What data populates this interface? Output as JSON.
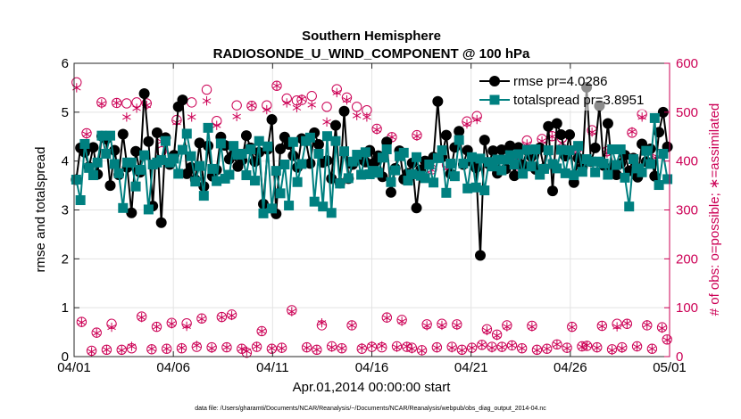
{
  "colors": {
    "rmse": "#000000",
    "spread": "#008080",
    "obs": "#cc0055",
    "grid": "#e3e3e3",
    "axis": "#262626"
  },
  "chart_data": {
    "type": "line",
    "title": "Southern Hemisphere",
    "subtitle": "RADIOSONDE_U_WIND_COMPONENT @ 100 hPa",
    "xlabel": "Apr.01,2014 00:00:00 start",
    "ylabel_left": "rmse and totalspread",
    "ylabel_right": "# of obs: o=possible; ∗=assimilated",
    "xlim": [
      0,
      30
    ],
    "ylim_left": [
      0,
      6
    ],
    "ylim_right": [
      0,
      600
    ],
    "x_ticks": [
      0,
      5,
      10,
      15,
      20,
      25,
      30
    ],
    "x_tick_labels": [
      "04/01",
      "04/06",
      "04/11",
      "04/16",
      "04/21",
      "04/26",
      "05/01"
    ],
    "y_left_ticks": [
      "0",
      "1",
      "2",
      "3",
      "4",
      "5",
      "6"
    ],
    "y_right_ticks": [
      "0",
      "100",
      "200",
      "300",
      "400",
      "500",
      "600"
    ],
    "legend": [
      {
        "label": "rmse pr=4.0286",
        "series": "rmse"
      },
      {
        "label": "totalspread pr=3.8951",
        "series": "totalspread"
      }
    ],
    "legend_position": "top-right",
    "grid": true,
    "series": [
      {
        "name": "rmse",
        "axis": "left",
        "values": [
          3.62,
          4.27,
          4.18,
          3.88,
          4.28,
          3.73,
          4.51,
          4.45,
          3.5,
          4.22,
          3.72,
          4.55,
          3.87,
          2.94,
          4.2,
          3.77,
          5.38,
          4.4,
          3.08,
          4.58,
          2.74,
          4.48,
          3.93,
          4.12,
          5.11,
          5.25,
          3.74,
          3.87,
          3.62,
          4.37,
          3.48,
          4.31,
          3.69,
          3.82,
          4.49,
          4.32,
          4.04,
          4.13,
          3.89,
          4.02,
          4.52,
          4.27,
          3.99,
          4.18,
          3.12,
          4.24,
          4.85,
          2.92,
          4.25,
          4.49,
          4.34,
          4.11,
          3.87,
          4.46,
          4.41,
          3.95,
          4.58,
          4.34,
          3.97,
          4.01,
          3.64,
          4.73,
          3.55,
          5.02,
          3.64,
          3.93,
          4.02,
          4.04,
          3.98,
          4.22,
          3.96,
          4.11,
          3.68,
          4.39,
          3.36,
          3.85,
          4.21,
          3.63,
          3.75,
          3.96,
          3.04,
          3.82,
          4.0,
          3.99,
          4.08,
          5.22,
          4.08,
          4.53,
          3.74,
          4.28,
          4.61,
          3.93,
          4.22,
          3.99,
          3.86,
          2.07,
          4.43,
          3.94,
          4.21,
          3.75,
          4.23,
          3.84,
          4.31,
          3.7,
          4.28,
          3.92,
          4.22,
          4.09,
          3.83,
          4.27,
          3.85,
          4.71,
          3.39,
          4.77,
          4.54,
          4.1,
          4.54,
          3.56,
          4.06,
          3.87,
          5.51,
          3.99,
          4.27,
          5.13,
          3.91,
          4.77,
          3.86,
          3.72,
          3.95,
          4.12,
          3.8,
          4.06,
          3.67,
          4.35,
          3.99,
          4.25,
          3.69,
          4.59,
          5.0,
          4.29
        ]
      },
      {
        "name": "totalspread",
        "axis": "left",
        "values": [
          3.62,
          3.2,
          4.35,
          3.86,
          3.71,
          3.97,
          4.52,
          4.15,
          4.52,
          3.94,
          3.75,
          3.04,
          3.97,
          3.97,
          3.48,
          3.82,
          4.12,
          3.01,
          3.93,
          3.97,
          4.02,
          4.41,
          3.97,
          4.05,
          3.74,
          4.23,
          4.56,
          4.1,
          3.58,
          3.9,
          3.29,
          4.68,
          3.84,
          3.59,
          4.36,
          3.64,
          3.72,
          4.31,
          4.13,
          4.15,
          3.71,
          4.24,
          3.6,
          4.41,
          2.93,
          4.3,
          3.03,
          3.8,
          3.34,
          3.93,
          3.09,
          4.39,
          3.57,
          3.94,
          4.41,
          4.48,
          3.17,
          4.15,
          3.07,
          4.51,
          2.94,
          4.41,
          3.54,
          4.2,
          3.65,
          3.99,
          4.13,
          3.72,
          4.18,
          3.73,
          3.8,
          3.76,
          4.07,
          4.24,
          3.57,
          3.81,
          4.1,
          4.17,
          3.6,
          3.73,
          4.08,
          3.7,
          3.65,
          3.93,
          3.56,
          4.06,
          4.22,
          3.35,
          3.95,
          3.69,
          4.43,
          3.95,
          3.44,
          4.08,
          3.46,
          4.05,
          3.4,
          3.98,
          3.89,
          4.03,
          3.81,
          4.03,
          4.12,
          3.93,
          4.14,
          3.74,
          4.23,
          3.89,
          4.24,
          3.72,
          3.84,
          4.22,
          3.94,
          3.85,
          4.23,
          3.75,
          4.22,
          3.71,
          4.31,
          3.78,
          4.04,
          3.99,
          3.77,
          3.99,
          3.95,
          3.72,
          4.24,
          3.92,
          4.24,
          3.66,
          3.07,
          4.04,
          3.85,
          3.77,
          4.21,
          3.94,
          4.88,
          3.51,
          4.15,
          3.63
        ]
      },
      {
        "name": "obs_possible",
        "axis": "right",
        "values": [
          561,
          71,
          457,
          12,
          49,
          520,
          14,
          67,
          519,
          14,
          518,
          17,
          520,
          82,
          518,
          15,
          61,
          420,
          16,
          69,
          484,
          17,
          68,
          520,
          20,
          78,
          546,
          19,
          482,
          81,
          19,
          86,
          514,
          16,
          8,
          513,
          20,
          52,
          514,
          16,
          554,
          18,
          528,
          95,
          524,
          525,
          19,
          533,
          14,
          64,
          511,
          21,
          547,
          17,
          530,
          64,
          511,
          16,
          504,
          20,
          466,
          19,
          80,
          449,
          21,
          75,
          20,
          18,
          453,
          13,
          66,
          383,
          19,
          67,
          392,
          20,
          66,
          14,
          481,
          18,
          492,
          24,
          56,
          20,
          45,
          20,
          64,
          23,
          394,
          17,
          442,
          63,
          14,
          445,
          16,
          451,
          25,
          447,
          18,
          61,
          425,
          21,
          22,
          463,
          19,
          63,
          420,
          15,
          67,
          19,
          67,
          458,
          21,
          496,
          64,
          16,
          415,
          60,
          35
        ]
      },
      {
        "name": "obs_assimilated",
        "axis": "right",
        "values": [
          550,
          70,
          455,
          10,
          48,
          517,
          14,
          60,
          519,
          13,
          490,
          21,
          508,
          80,
          514,
          16,
          61,
          440,
          16,
          67,
          479,
          18,
          62,
          490,
          23,
          77,
          523,
          17,
          473,
          80,
          19,
          84,
          491,
          16,
          11,
          514,
          21,
          52,
          505,
          17,
          554,
          17,
          519,
          92,
          509,
          527,
          18,
          515,
          14,
          69,
          480,
          19,
          540,
          17,
          525,
          64,
          493,
          18,
          490,
          22,
          464,
          22,
          79,
          449,
          19,
          72,
          21,
          16,
          451,
          12,
          63,
          382,
          18,
          64,
          386,
          18,
          64,
          13,
          476,
          18,
          485,
          24,
          53,
          18,
          43,
          19,
          61,
          23,
          389,
          17,
          435,
          61,
          13,
          441,
          16,
          450,
          25,
          437,
          17,
          60,
          418,
          20,
          23,
          459,
          18,
          62,
          416,
          13,
          61,
          17,
          68,
          460,
          20,
          490,
          65,
          16,
          409,
          58,
          34
        ]
      }
    ]
  },
  "footer": {
    "data_file": "data file: /Users/gharamti/Documents/NCAR/Reanalysis/~/Documents/NCAR/Reanalysis/webpub/obs_diag_output_2014-04.nc"
  }
}
